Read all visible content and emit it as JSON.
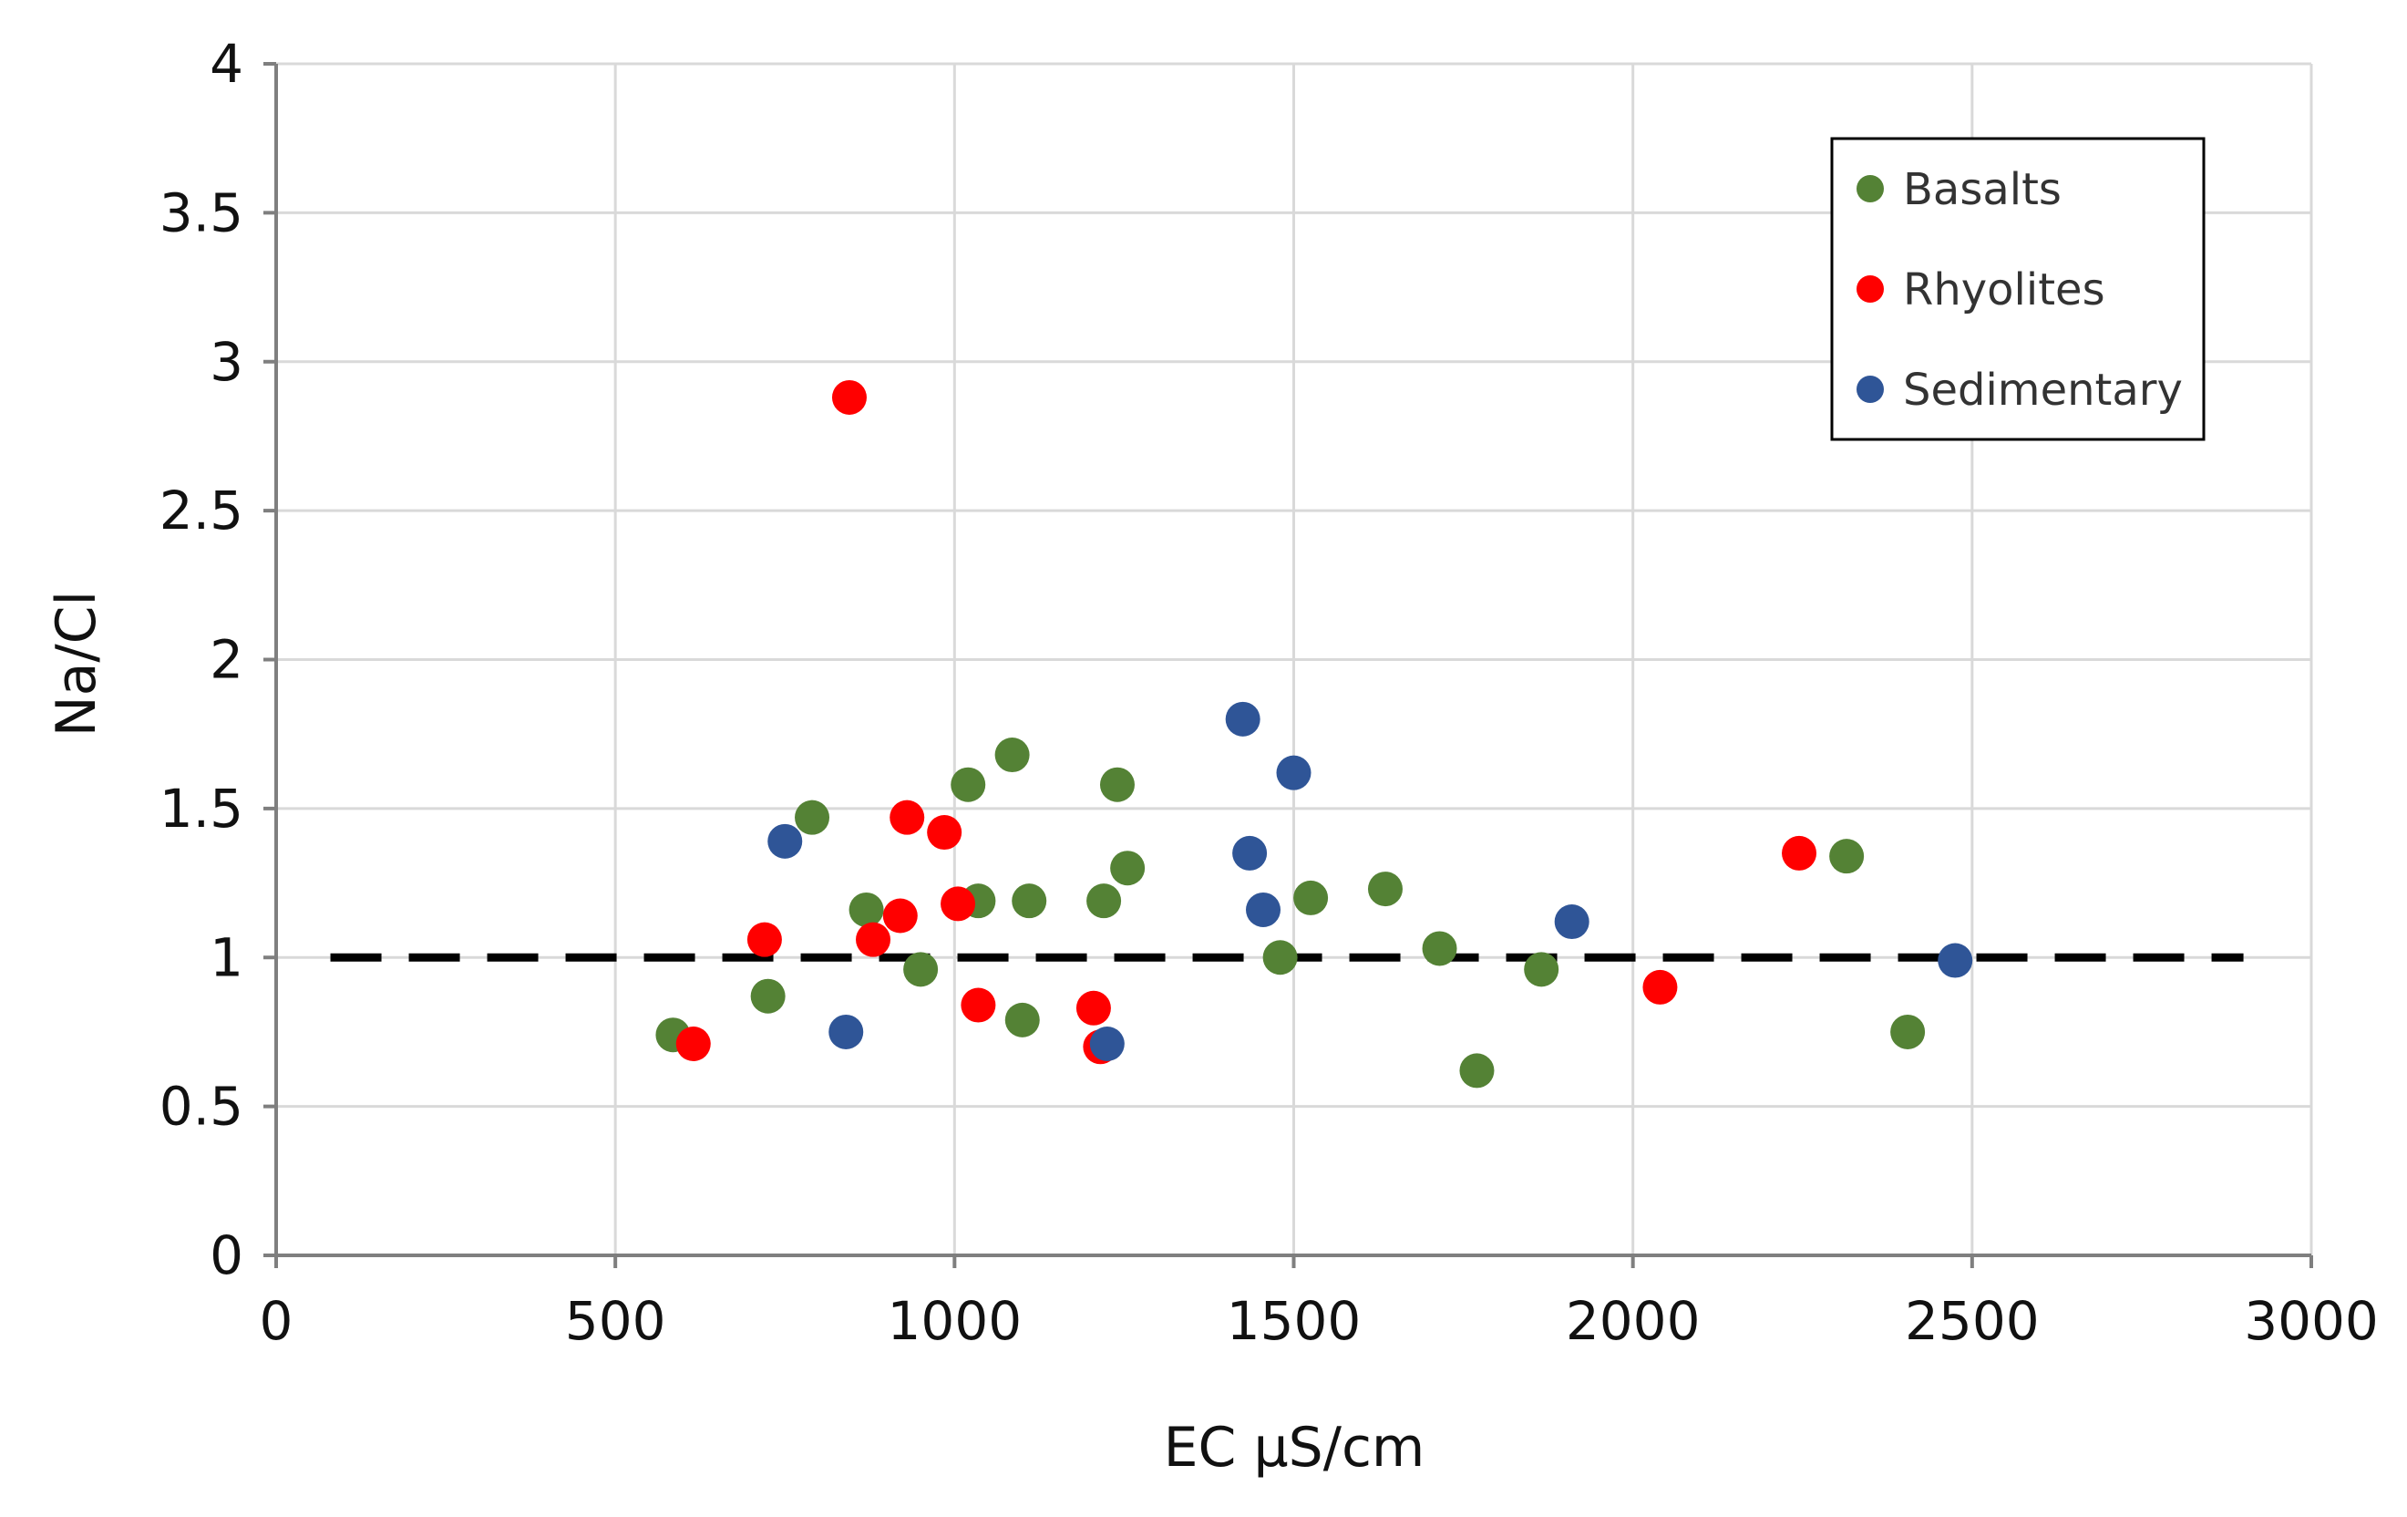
{
  "chart_data": {
    "type": "scatter",
    "title": "",
    "xlabel": "EC µS/cm",
    "ylabel": "Na/Cl",
    "xlim": [
      0,
      3000
    ],
    "ylim": [
      0,
      4
    ],
    "xticks": [
      0,
      500,
      1000,
      1500,
      2000,
      2500,
      3000
    ],
    "yticks": [
      0,
      0.5,
      1,
      1.5,
      2,
      2.5,
      3,
      3.5,
      4
    ],
    "xtick_labels": [
      "0",
      "500",
      "1000",
      "1500",
      "2000",
      "2500",
      "3000"
    ],
    "ytick_labels": [
      "0",
      "0.5",
      "1",
      "1.5",
      "2",
      "2.5",
      "3",
      "3.5",
      "4"
    ],
    "grid": true,
    "legend_position": "top-right",
    "reference_line": {
      "y": 1,
      "x_range": [
        80,
        2900
      ],
      "style": "dashed",
      "color": "#000000"
    },
    "series": [
      {
        "name": "Basalts",
        "color": "#548235",
        "points": [
          [
            585,
            0.74
          ],
          [
            725,
            0.87
          ],
          [
            790,
            1.47
          ],
          [
            870,
            1.16
          ],
          [
            950,
            0.96
          ],
          [
            1020,
            1.58
          ],
          [
            1035,
            1.19
          ],
          [
            1085,
            1.68
          ],
          [
            1100,
            0.79
          ],
          [
            1110,
            1.19
          ],
          [
            1220,
            1.19
          ],
          [
            1240,
            1.58
          ],
          [
            1255,
            1.3
          ],
          [
            1480,
            1.0
          ],
          [
            1525,
            1.2
          ],
          [
            1635,
            1.23
          ],
          [
            1715,
            1.03
          ],
          [
            1770,
            0.62
          ],
          [
            1865,
            0.96
          ],
          [
            2315,
            1.34
          ],
          [
            2405,
            0.75
          ]
        ]
      },
      {
        "name": "Rhyolites",
        "color": "#ff0000",
        "points": [
          [
            615,
            0.71
          ],
          [
            720,
            1.06
          ],
          [
            845,
            2.88
          ],
          [
            880,
            1.06
          ],
          [
            920,
            1.14
          ],
          [
            930,
            1.47
          ],
          [
            985,
            1.42
          ],
          [
            1005,
            1.18
          ],
          [
            1035,
            0.84
          ],
          [
            1205,
            0.83
          ],
          [
            1215,
            0.7
          ],
          [
            2040,
            0.9
          ],
          [
            2245,
            1.35
          ]
        ]
      },
      {
        "name": "Sedimentary",
        "color": "#2f5597",
        "points": [
          [
            750,
            1.39
          ],
          [
            840,
            0.75
          ],
          [
            1225,
            0.71
          ],
          [
            1425,
            1.8
          ],
          [
            1435,
            1.35
          ],
          [
            1455,
            1.16
          ],
          [
            1500,
            1.62
          ],
          [
            1910,
            1.12
          ],
          [
            2475,
            0.99
          ]
        ]
      }
    ]
  }
}
